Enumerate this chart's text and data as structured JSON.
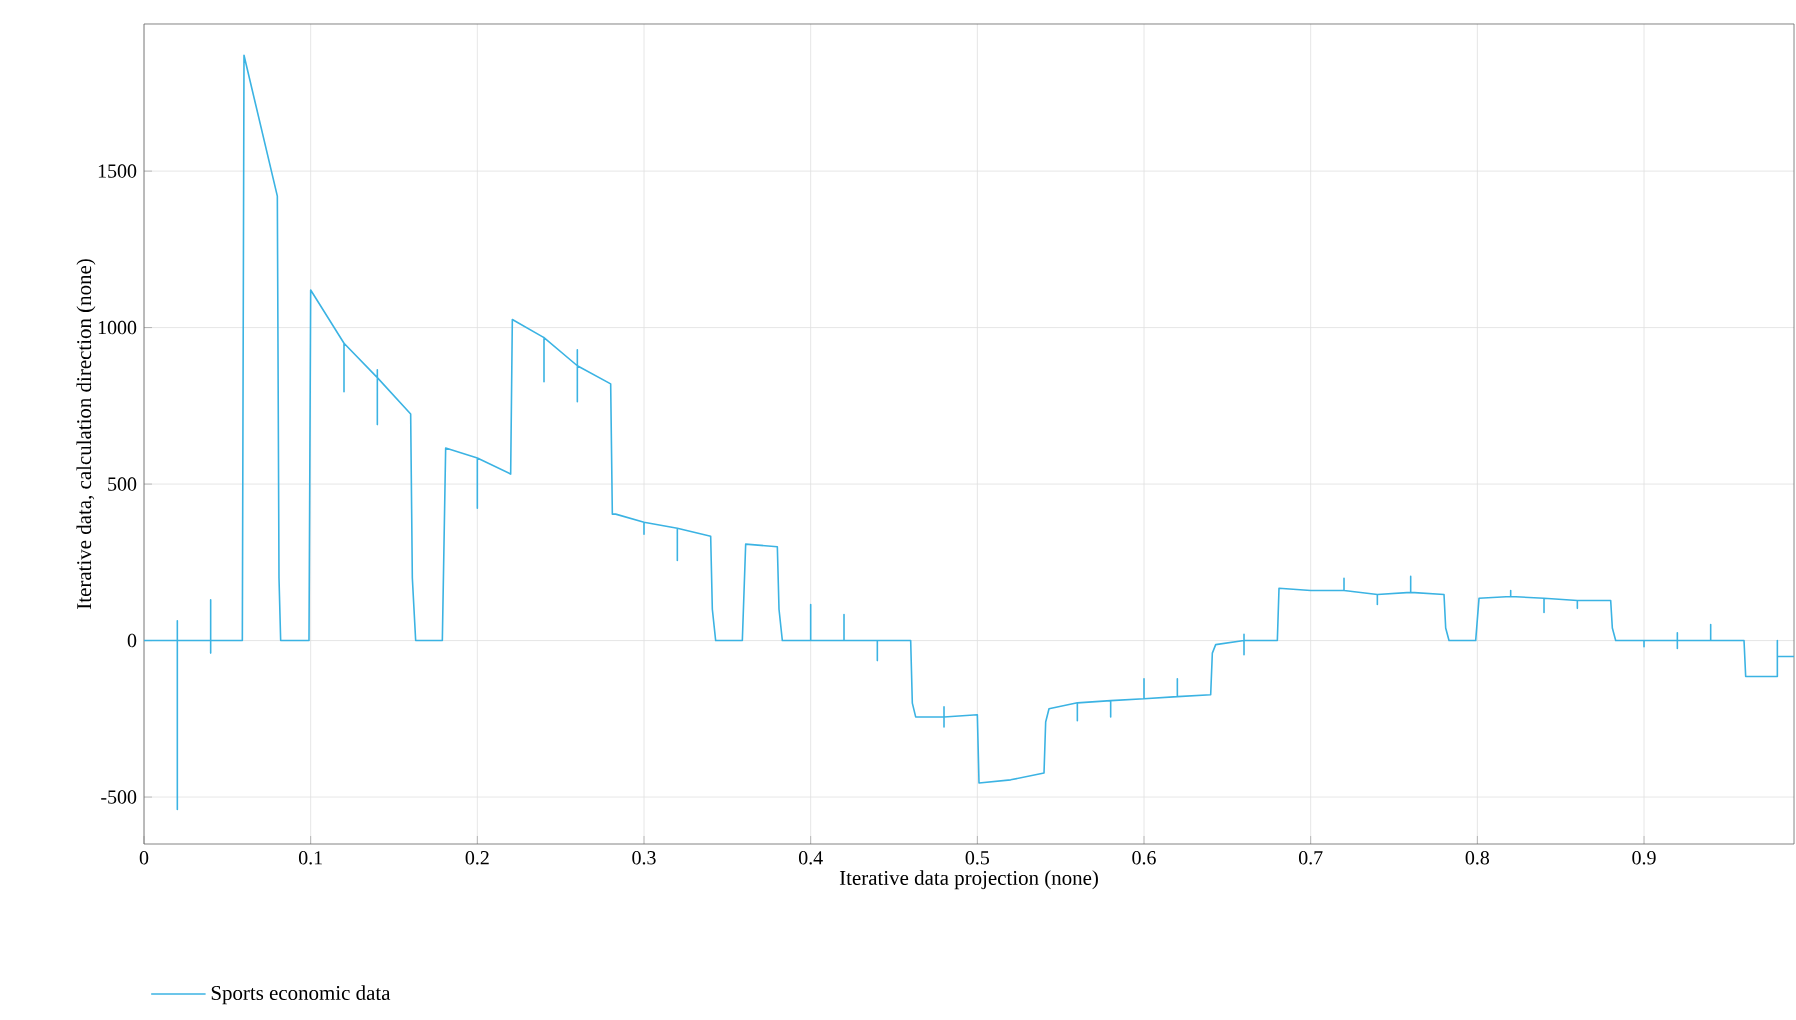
{
  "chart_data": {
    "type": "line",
    "xlabel": "Iterative data projection (none)",
    "ylabel": "Iterative data, calculation direction (none)",
    "xlim": [
      0,
      0.99
    ],
    "ylim": [
      -650,
      1970
    ],
    "xticks": [
      0,
      0.1,
      0.2,
      0.3,
      0.4,
      0.5,
      0.6,
      0.7,
      0.8,
      0.9
    ],
    "yticks": [
      -500,
      0,
      500,
      1000,
      1500
    ],
    "grid": true,
    "legend": "bottom left",
    "series": [
      {
        "name": "Sports economic data",
        "color": "#3bb3e3",
        "x": [
          0,
          0.02,
          0.02,
          0.02,
          0.02,
          0.04,
          0.04,
          0.04,
          0.04,
          0.059,
          0.06,
          0.08,
          0.081,
          0.082,
          0.099,
          0.1,
          0.12,
          0.12,
          0.12,
          0.14,
          0.14,
          0.14,
          0.14,
          0.16,
          0.161,
          0.163,
          0.179,
          0.181,
          0.2,
          0.2,
          0.2,
          0.22,
          0.221,
          0.24,
          0.24,
          0.24,
          0.26,
          0.26,
          0.26,
          0.26,
          0.28,
          0.281,
          0.283,
          0.3,
          0.3,
          0.3,
          0.32,
          0.32,
          0.32,
          0.34,
          0.341,
          0.343,
          0.359,
          0.361,
          0.38,
          0.381,
          0.383,
          0.4,
          0.4,
          0.4,
          0.42,
          0.42,
          0.42,
          0.44,
          0.44,
          0.44,
          0.46,
          0.461,
          0.463,
          0.48,
          0.48,
          0.48,
          0.48,
          0.5,
          0.501,
          0.52,
          0.54,
          0.541,
          0.543,
          0.56,
          0.56,
          0.56,
          0.58,
          0.58,
          0.58,
          0.6,
          0.6,
          0.6,
          0.62,
          0.62,
          0.62,
          0.64,
          0.641,
          0.643,
          0.66,
          0.66,
          0.66,
          0.66,
          0.68,
          0.681,
          0.7,
          0.72,
          0.72,
          0.72,
          0.74,
          0.74,
          0.74,
          0.76,
          0.76,
          0.76,
          0.78,
          0.781,
          0.783,
          0.799,
          0.801,
          0.82,
          0.82,
          0.82,
          0.84,
          0.84,
          0.84,
          0.86,
          0.86,
          0.86,
          0.88,
          0.881,
          0.883,
          0.9,
          0.9,
          0.9,
          0.92,
          0.92,
          0.92,
          0.92,
          0.94,
          0.94,
          0.94,
          0.96,
          0.961,
          0.98,
          0.98,
          0.98,
          0.99
        ],
        "values": [
          0,
          0,
          63,
          -540,
          0,
          0,
          130,
          -40,
          0,
          0,
          1870,
          1420,
          200,
          0,
          0,
          1120,
          950,
          795,
          950,
          840,
          865,
          690,
          840,
          724,
          200,
          0,
          0,
          615,
          583,
          423,
          583,
          532,
          1026,
          968,
          827,
          968,
          878,
          929,
          763,
          878,
          820,
          404,
          404,
          378,
          340,
          378,
          359,
          256,
          359,
          333,
          100,
          0,
          0,
          308,
          300,
          100,
          0,
          0,
          115,
          0,
          0,
          83,
          0,
          0,
          -64,
          0,
          0,
          -200,
          -244,
          -244,
          -212,
          -276,
          -244,
          -237,
          -455,
          -445,
          -423,
          -260,
          -218,
          -199,
          -256,
          -199,
          -192,
          -244,
          -192,
          -186,
          -122,
          -186,
          -179,
          -122,
          -179,
          -173,
          -40,
          -13,
          0,
          -45,
          20,
          0,
          0,
          167,
          160,
          160,
          199,
          160,
          147,
          115,
          147,
          154,
          205,
          154,
          147,
          40,
          0,
          0,
          135,
          141,
          160,
          141,
          135,
          90,
          135,
          128,
          103,
          128,
          128,
          40,
          0,
          0,
          -20,
          0,
          0,
          -25,
          25,
          0,
          0,
          51,
          0,
          0,
          -115,
          -115,
          0,
          -51,
          -51
        ]
      }
    ]
  }
}
